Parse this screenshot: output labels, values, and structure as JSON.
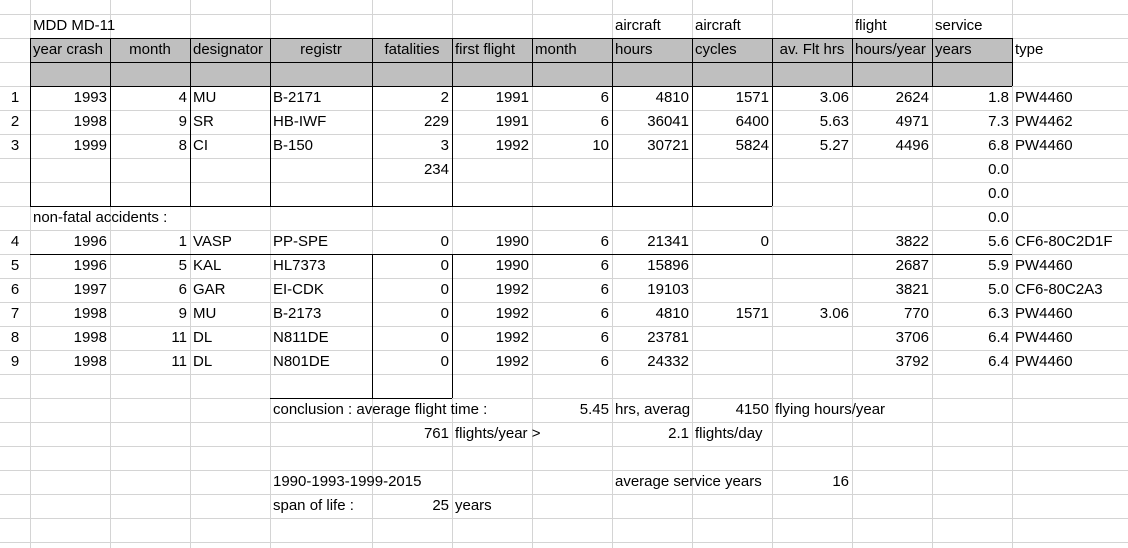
{
  "sheet_title": "MDD MD-11",
  "header_top": {
    "aircraft_hours": "aircraft",
    "aircraft_cycles": "aircraft",
    "flight_hours_year": "flight",
    "service_years": "service"
  },
  "headers": {
    "year_crash": "year crash",
    "month": "month",
    "designator": "designator",
    "registr": "registr",
    "fatalities": "fatalities",
    "first_flight": "first flight",
    "month2": "month",
    "hours": "hours",
    "cycles": "cycles",
    "av_flt_hrs": "av. Flt hrs",
    "hours_year": "hours/year",
    "years": "years",
    "type": "type"
  },
  "fatal_rows": [
    {
      "num": "1",
      "year": "1993",
      "month": "4",
      "designator": "MU",
      "registr": "B-2171",
      "fatalities": "2",
      "first_flight": "1991",
      "ff_month": "6",
      "hours": "4810",
      "cycles": "1571",
      "av": "3.06",
      "hours_year": "2624",
      "years": "1.8",
      "type": "PW4460"
    },
    {
      "num": "2",
      "year": "1998",
      "month": "9",
      "designator": "SR",
      "registr": "HB-IWF",
      "fatalities": "229",
      "first_flight": "1991",
      "ff_month": "6",
      "hours": "36041",
      "cycles": "6400",
      "av": "5.63",
      "hours_year": "4971",
      "years": "7.3",
      "type": "PW4462"
    },
    {
      "num": "3",
      "year": "1999",
      "month": "8",
      "designator": "CI",
      "registr": "B-150",
      "fatalities": "3",
      "first_flight": "1992",
      "ff_month": "10",
      "hours": "30721",
      "cycles": "5824",
      "av": "5.27",
      "hours_year": "4496",
      "years": "6.8",
      "type": "PW4460"
    }
  ],
  "fatalities_total": "234",
  "extra_years": [
    "0.0",
    "0.0",
    "0.0"
  ],
  "nonfatal_label": "non-fatal accidents :",
  "nonfatal_rows": [
    {
      "num": "4",
      "year": "1996",
      "month": "1",
      "designator": "VASP",
      "registr": "PP-SPE",
      "fatalities": "0",
      "first_flight": "1990",
      "ff_month": "6",
      "hours": "21341",
      "cycles": "0",
      "av": "",
      "hours_year": "3822",
      "years": "5.6",
      "type": "CF6-80C2D1F"
    },
    {
      "num": "5",
      "year": "1996",
      "month": "5",
      "designator": "KAL",
      "registr": "HL7373",
      "fatalities": "0",
      "first_flight": "1990",
      "ff_month": "6",
      "hours": "15896",
      "cycles": "",
      "av": "",
      "hours_year": "2687",
      "years": "5.9",
      "type": "PW4460"
    },
    {
      "num": "6",
      "year": "1997",
      "month": "6",
      "designator": "GAR",
      "registr": "EI-CDK",
      "fatalities": "0",
      "first_flight": "1992",
      "ff_month": "6",
      "hours": "19103",
      "cycles": "",
      "av": "",
      "hours_year": "3821",
      "years": "5.0",
      "type": "CF6-80C2A3"
    },
    {
      "num": "7",
      "year": "1998",
      "month": "9",
      "designator": "MU",
      "registr": "B-2173",
      "fatalities": "0",
      "first_flight": "1992",
      "ff_month": "6",
      "hours": "4810",
      "cycles": "1571",
      "av": "3.06",
      "hours_year": "770",
      "years": "6.3",
      "type": "PW4460"
    },
    {
      "num": "8",
      "year": "1998",
      "month": "11",
      "designator": "DL",
      "registr": "N811DE",
      "fatalities": "0",
      "first_flight": "1992",
      "ff_month": "6",
      "hours": "23781",
      "cycles": "",
      "av": "",
      "hours_year": "3706",
      "years": "6.4",
      "type": "PW4460"
    },
    {
      "num": "9",
      "year": "1998",
      "month": "11",
      "designator": "DL",
      "registr": "N801DE",
      "fatalities": "0",
      "first_flight": "1992",
      "ff_month": "6",
      "hours": "24332",
      "cycles": "",
      "av": "",
      "hours_year": "3792",
      "years": "6.4",
      "type": "PW4460"
    }
  ],
  "conclusion": {
    "label": "conclusion : average flight time :",
    "avg_time": "5.45",
    "avg_text": "hrs, averag",
    "flying_hours": "4150",
    "flying_hours_text": "flying hours/year",
    "flights_year": "761",
    "flights_year_text": "flights/year >",
    "flights_day": "2.1",
    "flights_day_text": "flights/day",
    "years_range": "1990-1993-1999-2015",
    "avg_service_label": "average service years",
    "avg_service": "16",
    "span_label": "span of life :",
    "span_value": "25",
    "span_unit": "years"
  }
}
